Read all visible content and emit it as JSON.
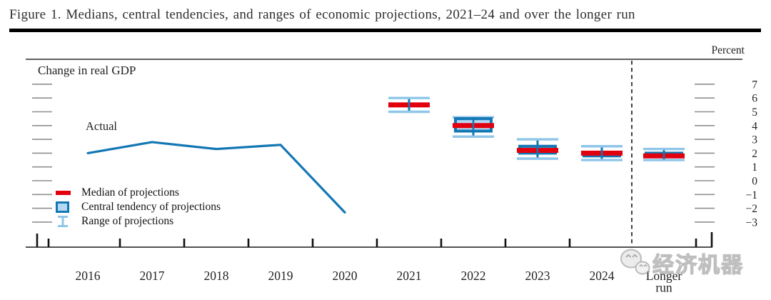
{
  "figure": {
    "title": "Figure 1. Medians, central tendencies, and ranges of economic projections, 2021–24 and over the longer run",
    "unit_label": "Percent",
    "panel_label": "Change in real GDP",
    "actual_label": "Actual"
  },
  "legend": {
    "median": "Median of projections",
    "central_tendency": "Central tendency of projections",
    "range": "Range of projections"
  },
  "watermark": {
    "icon": "wechat-icon",
    "text": "经济机器"
  },
  "colors": {
    "blue": "#1377b4",
    "light_blue": "#b5d9f2",
    "range_blue": "#8fc6e9",
    "red": "#e2000f",
    "grid_dash": "#8f8f8f",
    "axis": "#3a3a3a",
    "tick": "#111111",
    "text": "#1f1f1f"
  },
  "chart_data": {
    "type": "line",
    "title": "Change in real GDP",
    "ylabel": "Percent",
    "ylim": [
      -3.5,
      7.5
    ],
    "yticks": [
      7,
      6,
      5,
      4,
      3,
      2,
      1,
      0,
      -1,
      -2,
      -3
    ],
    "grid": "short tick dashes on left and right edges",
    "legend_position": "lower left",
    "actual_series": {
      "name": "Actual",
      "x": [
        "2016",
        "2017",
        "2018",
        "2019",
        "2020"
      ],
      "values": [
        2.0,
        2.8,
        2.3,
        2.6,
        -2.3
      ]
    },
    "projection_series": {
      "name": "Projections",
      "style": "median-bar with central-tendency box and range whiskers",
      "categories": [
        "2021",
        "2022",
        "2023",
        "2024",
        "Longer run"
      ],
      "median": [
        5.5,
        4.0,
        2.2,
        2.0,
        1.8
      ],
      "central_tendency": [
        [
          5.5,
          5.5
        ],
        [
          3.6,
          4.5
        ],
        [
          2.0,
          2.5
        ],
        [
          1.8,
          2.0
        ],
        [
          1.8,
          2.0
        ]
      ],
      "range": [
        [
          5.0,
          6.0
        ],
        [
          3.2,
          4.6
        ],
        [
          1.6,
          3.0
        ],
        [
          1.5,
          2.5
        ],
        [
          1.5,
          2.3
        ]
      ]
    },
    "x_axis_years": [
      "2016",
      "2017",
      "2018",
      "2019",
      "2020",
      "2021",
      "2022",
      "2023",
      "2024"
    ],
    "longer_run_label": [
      "Longer",
      "run"
    ],
    "divider": "vertical dashed line separates 2024 from longer run"
  }
}
